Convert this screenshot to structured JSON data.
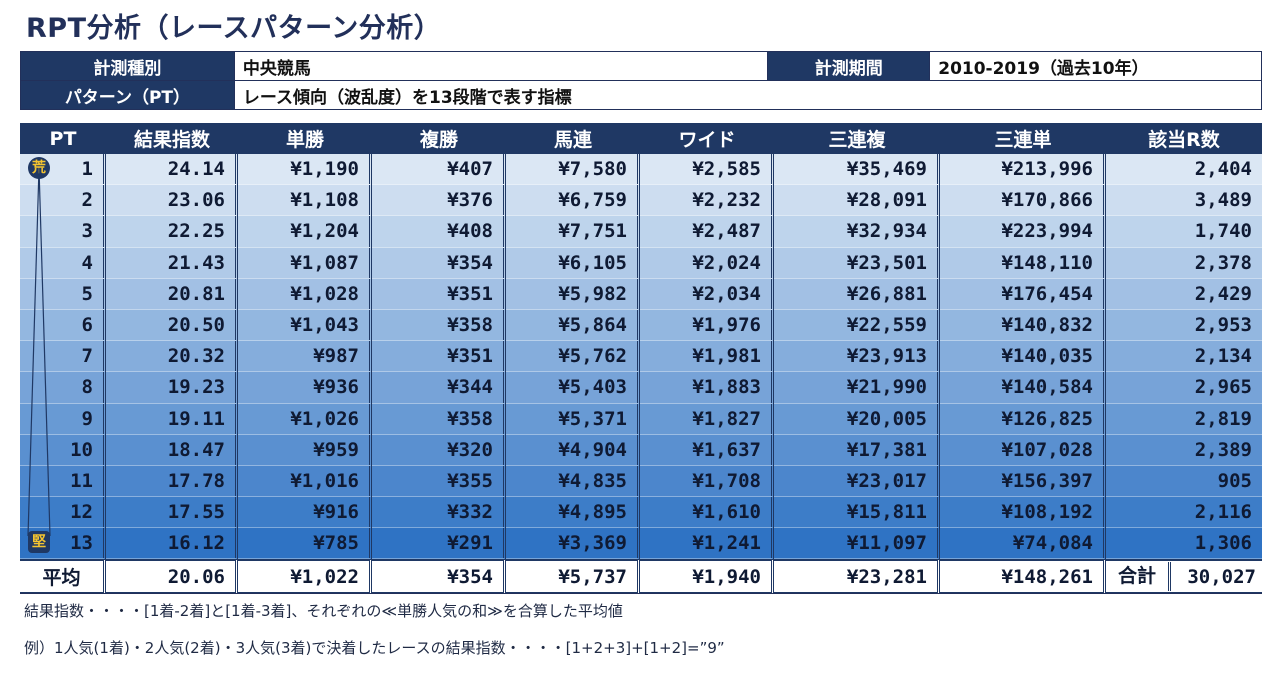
{
  "title": "RPT分析（レースパターン分析）",
  "info": {
    "measure_type_label": "計測種別",
    "measure_type_value": "中央競馬",
    "period_label": "計測期間",
    "period_value": "2010-2019（過去10年）",
    "pattern_label": "パターン（PT）",
    "pattern_value": "レース傾向（波乱度）を13段階で表す指標"
  },
  "table": {
    "headers": [
      "PT",
      "結果指数",
      "単勝",
      "複勝",
      "馬連",
      "ワイド",
      "三連複",
      "三連単",
      "該当R数"
    ],
    "badge_top": "荒",
    "badge_bottom": "堅",
    "rows": [
      [
        "1",
        "24.14",
        "¥1,190",
        "¥407",
        "¥7,580",
        "¥2,585",
        "¥35,469",
        "¥213,996",
        "2,404"
      ],
      [
        "2",
        "23.06",
        "¥1,108",
        "¥376",
        "¥6,759",
        "¥2,232",
        "¥28,091",
        "¥170,866",
        "3,489"
      ],
      [
        "3",
        "22.25",
        "¥1,204",
        "¥408",
        "¥7,751",
        "¥2,487",
        "¥32,934",
        "¥223,994",
        "1,740"
      ],
      [
        "4",
        "21.43",
        "¥1,087",
        "¥354",
        "¥6,105",
        "¥2,024",
        "¥23,501",
        "¥148,110",
        "2,378"
      ],
      [
        "5",
        "20.81",
        "¥1,028",
        "¥351",
        "¥5,982",
        "¥2,034",
        "¥26,881",
        "¥176,454",
        "2,429"
      ],
      [
        "6",
        "20.50",
        "¥1,043",
        "¥358",
        "¥5,864",
        "¥1,976",
        "¥22,559",
        "¥140,832",
        "2,953"
      ],
      [
        "7",
        "20.32",
        "¥987",
        "¥351",
        "¥5,762",
        "¥1,981",
        "¥23,913",
        "¥140,035",
        "2,134"
      ],
      [
        "8",
        "19.23",
        "¥936",
        "¥344",
        "¥5,403",
        "¥1,883",
        "¥21,990",
        "¥140,584",
        "2,965"
      ],
      [
        "9",
        "19.11",
        "¥1,026",
        "¥358",
        "¥5,371",
        "¥1,827",
        "¥20,005",
        "¥126,825",
        "2,819"
      ],
      [
        "10",
        "18.47",
        "¥959",
        "¥320",
        "¥4,904",
        "¥1,637",
        "¥17,381",
        "¥107,028",
        "2,389"
      ],
      [
        "11",
        "17.78",
        "¥1,016",
        "¥355",
        "¥4,835",
        "¥1,708",
        "¥23,017",
        "¥156,397",
        "905"
      ],
      [
        "12",
        "17.55",
        "¥916",
        "¥332",
        "¥4,895",
        "¥1,610",
        "¥15,811",
        "¥108,192",
        "2,116"
      ],
      [
        "13",
        "16.12",
        "¥785",
        "¥291",
        "¥3,369",
        "¥1,241",
        "¥11,097",
        "¥74,084",
        "1,306"
      ]
    ],
    "average": {
      "label": "平均",
      "values": [
        "20.06",
        "¥1,022",
        "¥354",
        "¥5,737",
        "¥1,940",
        "¥23,281",
        "¥148,261"
      ],
      "total_label": "合計",
      "total_value": "30,027"
    }
  },
  "notes": {
    "line1": "結果指数・・・・[1着-2着]と[1着-3着]、それぞれの≪単勝人気の和≫を合算した平均値",
    "line2": "例）1人気(1着)・2人気(2着)・3人気(3着)で決着したレースの結果指数・・・・[1+2+3]+[1+2]=”9”"
  },
  "colors": {
    "header_navy": "#1f3864",
    "row_top": "#dbe6f4",
    "row_bottom": "#2f73c4",
    "badge_text": "#f4c430"
  }
}
